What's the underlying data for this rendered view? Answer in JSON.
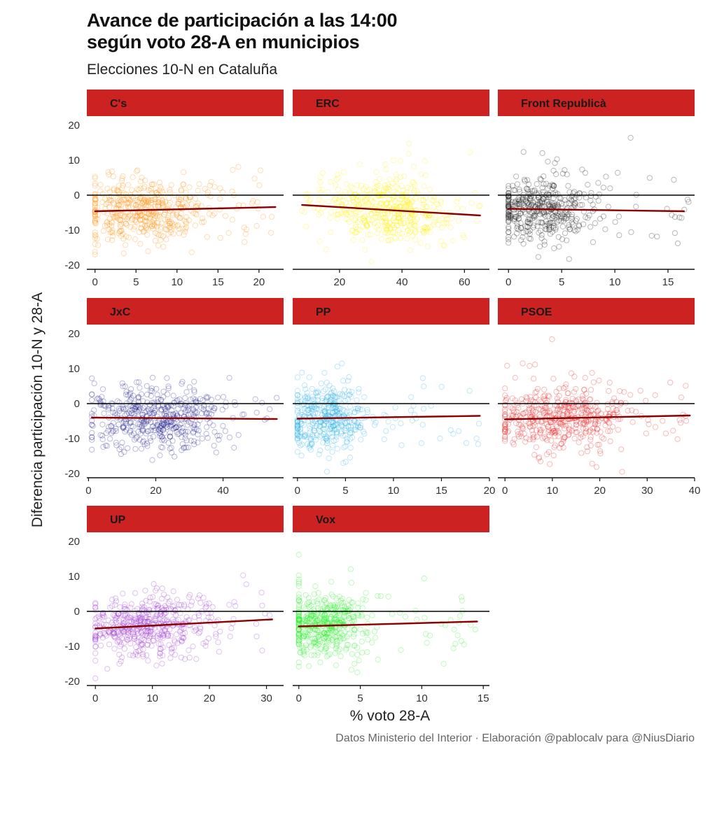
{
  "title_line1": "Avance de participación a las 14:00",
  "title_line2": "según voto 28-A en municipios",
  "subtitle": "Elecciones 10-N en Cataluña",
  "ylabel": "Diferencia participación 10-N y 28-A",
  "xlabel": "% voto 28-A",
  "caption": "Datos Ministerio del Interior · Elaboración @pablocalv para @NiusDiario",
  "colors": {
    "strip": "#cc2222",
    "trend": "#8b0000",
    "zero_line": "#000000"
  },
  "chart_data": {
    "type": "scatter",
    "title": "Avance de participación a las 14:00 según voto 28-A en municipios",
    "xlabel": "% voto 28-A",
    "ylabel": "Diferencia participación 10-N y 28-A",
    "ylim": [
      -21,
      21
    ],
    "y_ticks": [
      -20,
      -10,
      0,
      10,
      20
    ],
    "panels": [
      {
        "name": "C's",
        "color": "#ff8c00",
        "xlim": [
          -1,
          23
        ],
        "x_ticks": [
          0,
          5,
          10,
          15,
          20
        ],
        "trend": [
          [
            0,
            -4.6
          ],
          [
            22,
            -3.4
          ]
        ],
        "cluster": {
          "center_x": 6,
          "spread_x": 4,
          "min_x": 0,
          "max_x": 22,
          "spread_y": 4.5,
          "n": 500
        }
      },
      {
        "name": "ERC",
        "color": "#ffee00",
        "xlim": [
          5,
          68
        ],
        "x_ticks": [
          20,
          40,
          60
        ],
        "trend": [
          [
            8,
            -2.8
          ],
          [
            65,
            -5.8
          ]
        ],
        "cluster": {
          "center_x": 36,
          "spread_x": 10,
          "min_x": 8,
          "max_x": 65,
          "spread_y": 4.5,
          "n": 500
        }
      },
      {
        "name": "Front Republicà",
        "color": "#111111",
        "xlim": [
          -1,
          17.5
        ],
        "x_ticks": [
          0,
          5,
          10,
          15
        ],
        "trend": [
          [
            0,
            -3.9
          ],
          [
            16.5,
            -4.6
          ]
        ],
        "cluster": {
          "center_x": 3,
          "spread_x": 2.5,
          "min_x": 0,
          "max_x": 17,
          "spread_y": 4.5,
          "n": 450
        }
      },
      {
        "name": "JxC",
        "color": "#1c1c8c",
        "xlim": [
          -0.5,
          58
        ],
        "x_ticks": [
          0,
          20,
          40
        ],
        "trend": [
          [
            1,
            -4
          ],
          [
            56,
            -4.4
          ]
        ],
        "cluster": {
          "center_x": 20,
          "spread_x": 10,
          "min_x": 1,
          "max_x": 56,
          "spread_y": 4.5,
          "n": 500
        }
      },
      {
        "name": "PP",
        "color": "#29aee6",
        "xlim": [
          -0.5,
          20
        ],
        "x_ticks": [
          0,
          5,
          10,
          15,
          20
        ],
        "trend": [
          [
            0,
            -4.3
          ],
          [
            19,
            -3.5
          ]
        ],
        "cluster": {
          "center_x": 3,
          "spread_x": 2,
          "min_x": 0,
          "max_x": 19,
          "spread_y": 4.5,
          "n": 450
        }
      },
      {
        "name": "PSOE",
        "color": "#e31a1c",
        "xlim": [
          -1.5,
          40
        ],
        "x_ticks": [
          0,
          10,
          20,
          30,
          40
        ],
        "trend": [
          [
            0,
            -4.5
          ],
          [
            39,
            -3.4
          ]
        ],
        "cluster": {
          "center_x": 11,
          "spread_x": 7,
          "min_x": 0,
          "max_x": 39,
          "spread_y": 4.5,
          "n": 500
        }
      },
      {
        "name": "UP",
        "color": "#9932cc",
        "xlim": [
          -1.5,
          33
        ],
        "x_ticks": [
          0,
          10,
          20,
          30
        ],
        "trend": [
          [
            0,
            -4.9
          ],
          [
            31,
            -2.3
          ]
        ],
        "cluster": {
          "center_x": 9,
          "spread_x": 5,
          "min_x": 0,
          "max_x": 31,
          "spread_y": 4.5,
          "n": 500
        }
      },
      {
        "name": "Vox",
        "color": "#22ee22",
        "xlim": [
          -0.5,
          15.5
        ],
        "x_ticks": [
          0,
          5,
          10,
          15
        ],
        "trend": [
          [
            0,
            -4.3
          ],
          [
            14.5,
            -2.9
          ]
        ],
        "cluster": {
          "center_x": 2,
          "spread_x": 1.8,
          "min_x": 0,
          "max_x": 14.5,
          "spread_y": 4.5,
          "n": 500
        }
      }
    ]
  }
}
